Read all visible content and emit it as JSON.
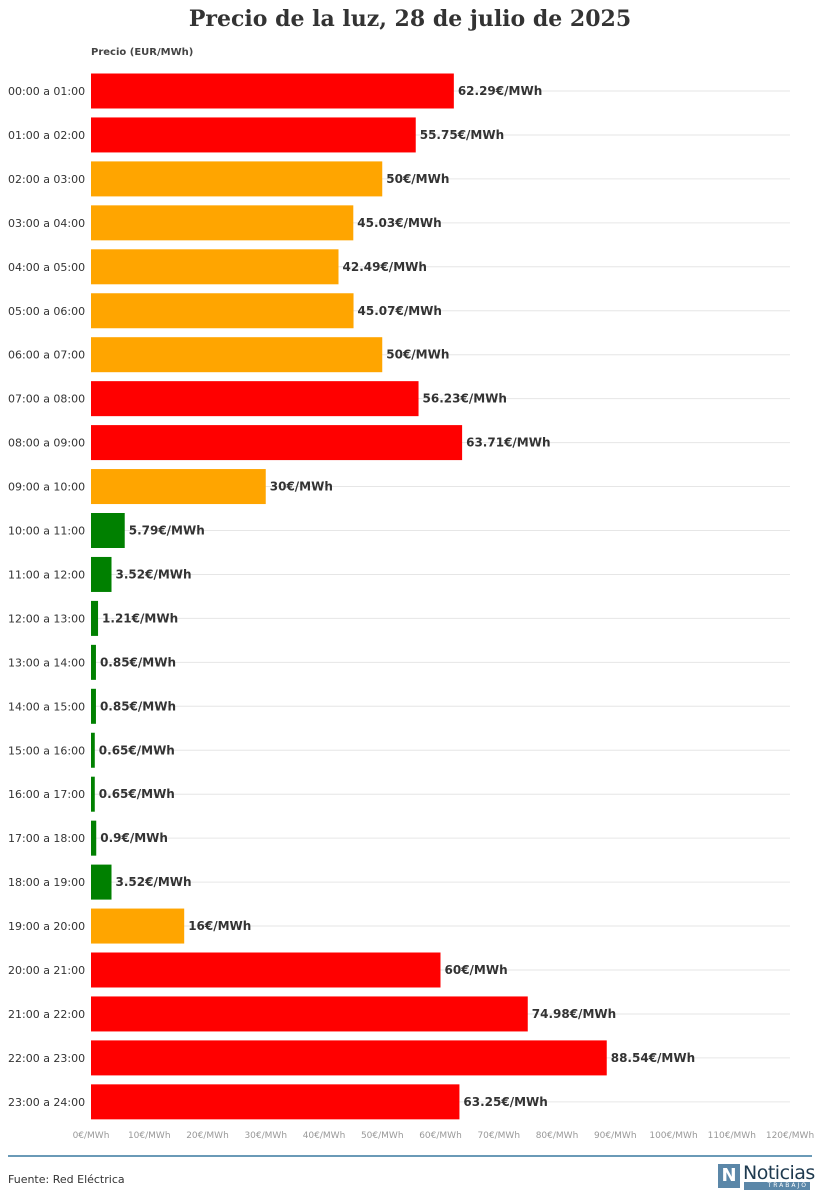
{
  "page": {
    "title": "Precio de la luz, 28 de julio de 2025",
    "source": "Fuente: Red Eléctrica",
    "logo": {
      "main": "Noticias",
      "sub": "TRABAJO",
      "mark": "N"
    }
  },
  "colors": {
    "high": "#ff0000",
    "medium": "#ffa500",
    "low": "#008000",
    "grid": "#e6e6e6"
  },
  "chart_data": {
    "type": "bar",
    "orientation": "horizontal",
    "title": "Precio de la luz, 28 de julio de 2025",
    "xlabel": "",
    "ylabel": "Precio (EUR/MWh)",
    "xlim": [
      0,
      120
    ],
    "grid": true,
    "x_ticks": [
      "0€/MWh",
      "10€/MWh",
      "20€/MWh",
      "30€/MWh",
      "40€/MWh",
      "50€/MWh",
      "60€/MWh",
      "70€/MWh",
      "80€/MWh",
      "90€/MWh",
      "100€/MWh",
      "110€/MWh",
      "120€/MWh"
    ],
    "categories": [
      "00:00 a 01:00",
      "01:00 a 02:00",
      "02:00 a 03:00",
      "03:00 a 04:00",
      "04:00 a 05:00",
      "05:00 a 06:00",
      "06:00 a 07:00",
      "07:00 a 08:00",
      "08:00 a 09:00",
      "09:00 a 10:00",
      "10:00 a 11:00",
      "11:00 a 12:00",
      "12:00 a 13:00",
      "13:00 a 14:00",
      "14:00 a 15:00",
      "15:00 a 16:00",
      "16:00 a 17:00",
      "17:00 a 18:00",
      "18:00 a 19:00",
      "19:00 a 20:00",
      "20:00 a 21:00",
      "21:00 a 22:00",
      "22:00 a 23:00",
      "23:00 a 24:00"
    ],
    "values": [
      62.29,
      55.75,
      50,
      45.03,
      42.49,
      45.07,
      50,
      56.23,
      63.71,
      30,
      5.79,
      3.52,
      1.21,
      0.85,
      0.85,
      0.65,
      0.65,
      0.9,
      3.52,
      16,
      60,
      74.98,
      88.54,
      63.25
    ],
    "labels": [
      "62.29€/MWh",
      "55.75€/MWh",
      "50€/MWh",
      "45.03€/MWh",
      "42.49€/MWh",
      "45.07€/MWh",
      "50€/MWh",
      "56.23€/MWh",
      "63.71€/MWh",
      "30€/MWh",
      "5.79€/MWh",
      "3.52€/MWh",
      "1.21€/MWh",
      "0.85€/MWh",
      "0.85€/MWh",
      "0.65€/MWh",
      "0.65€/MWh",
      "0.9€/MWh",
      "3.52€/MWh",
      "16€/MWh",
      "60€/MWh",
      "74.98€/MWh",
      "88.54€/MWh",
      "63.25€/MWh"
    ],
    "bar_colors": [
      "high",
      "high",
      "medium",
      "medium",
      "medium",
      "medium",
      "medium",
      "high",
      "high",
      "medium",
      "low",
      "low",
      "low",
      "low",
      "low",
      "low",
      "low",
      "low",
      "low",
      "medium",
      "high",
      "high",
      "high",
      "high"
    ]
  }
}
